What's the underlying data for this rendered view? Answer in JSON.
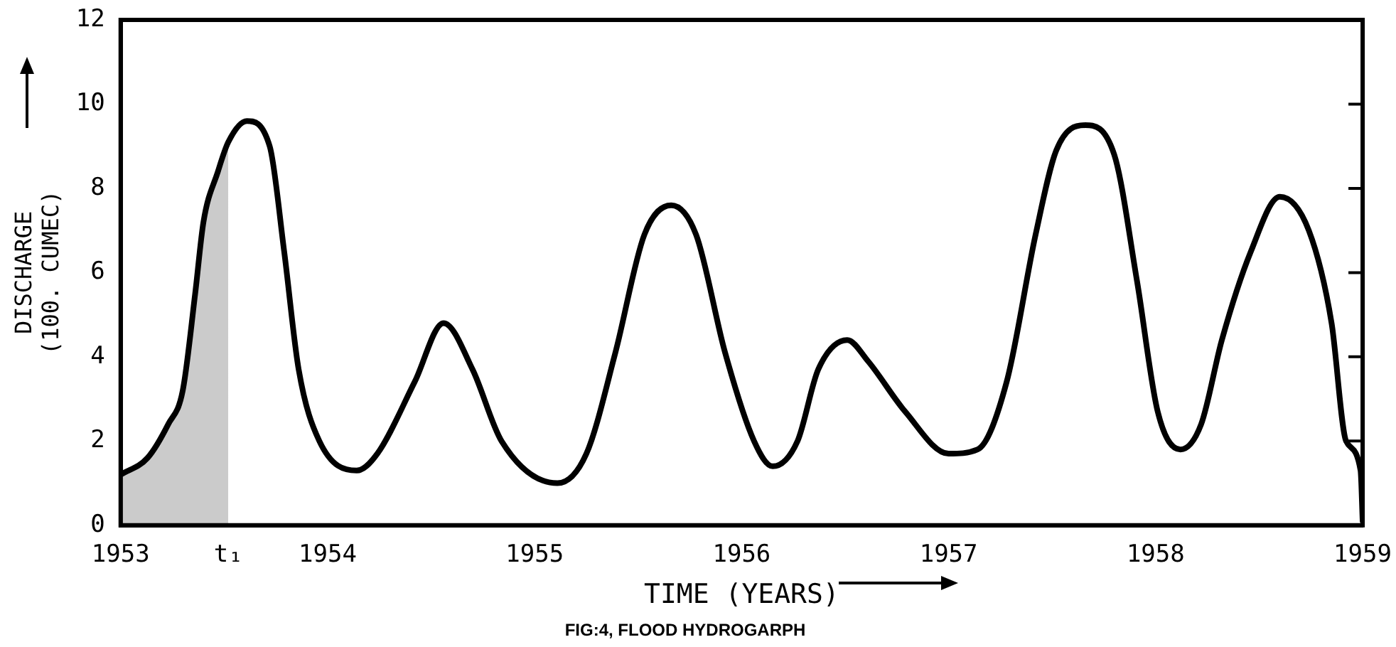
{
  "chart_data": {
    "type": "line",
    "title": "FIG:4, FLOOD HYDROGARPH",
    "xlabel": "TIME (YEARS)",
    "ylabel": "DISCHARGE\n(100. CUMEC)",
    "xlim": [
      1953,
      1959
    ],
    "ylim": [
      0,
      12
    ],
    "xticks": [
      1953,
      {
        "value": 1953.52,
        "label": "t₁"
      },
      1954,
      1955,
      1956,
      1957,
      1958,
      1959
    ],
    "yticks": [
      0,
      2,
      4,
      6,
      8,
      10,
      12
    ],
    "grid": false,
    "legend": false,
    "marker": "none",
    "line_style": "solid",
    "series": [
      {
        "type": "area",
        "color": "#a8a8a8",
        "x": [
          1953.0,
          1953.13,
          1953.23,
          1953.3,
          1953.36,
          1953.4,
          1953.47,
          1953.52
        ],
        "values": [
          1.2,
          1.6,
          2.4,
          3.2,
          5.5,
          7.2,
          8.4,
          9.1
        ]
      },
      {
        "color": "#000000",
        "x": [
          1953.0,
          1953.13,
          1953.23,
          1953.3,
          1953.36,
          1953.4,
          1953.47,
          1953.52,
          1953.61,
          1953.72,
          1953.79,
          1953.86,
          1953.96,
          1954.14,
          1954.24,
          1954.42,
          1954.56,
          1954.7,
          1954.84,
          1955.11,
          1955.25,
          1955.39,
          1955.53,
          1955.66,
          1955.78,
          1955.92,
          1956.06,
          1956.15,
          1956.27,
          1956.37,
          1956.51,
          1956.61,
          1956.79,
          1957.0,
          1957.14,
          1957.28,
          1957.42,
          1957.52,
          1957.66,
          1957.8,
          1957.91,
          1958.01,
          1958.12,
          1958.22,
          1958.32,
          1958.46,
          1958.6,
          1958.74,
          1958.85,
          1958.92,
          1958.99,
          1959.0
        ],
        "values": [
          1.2,
          1.6,
          2.4,
          3.2,
          5.5,
          7.2,
          8.4,
          9.1,
          9.6,
          9.0,
          6.5,
          3.7,
          2.0,
          1.3,
          1.7,
          3.4,
          4.8,
          3.7,
          2.0,
          1.0,
          1.7,
          4.1,
          6.9,
          7.6,
          6.9,
          4.1,
          2.0,
          1.4,
          2.0,
          3.7,
          4.4,
          3.9,
          2.7,
          1.7,
          1.8,
          3.4,
          6.9,
          8.9,
          9.5,
          8.8,
          5.8,
          2.7,
          1.8,
          2.4,
          4.4,
          6.5,
          7.8,
          7.0,
          4.8,
          2.0,
          1.3,
          0.1
        ]
      }
    ]
  }
}
